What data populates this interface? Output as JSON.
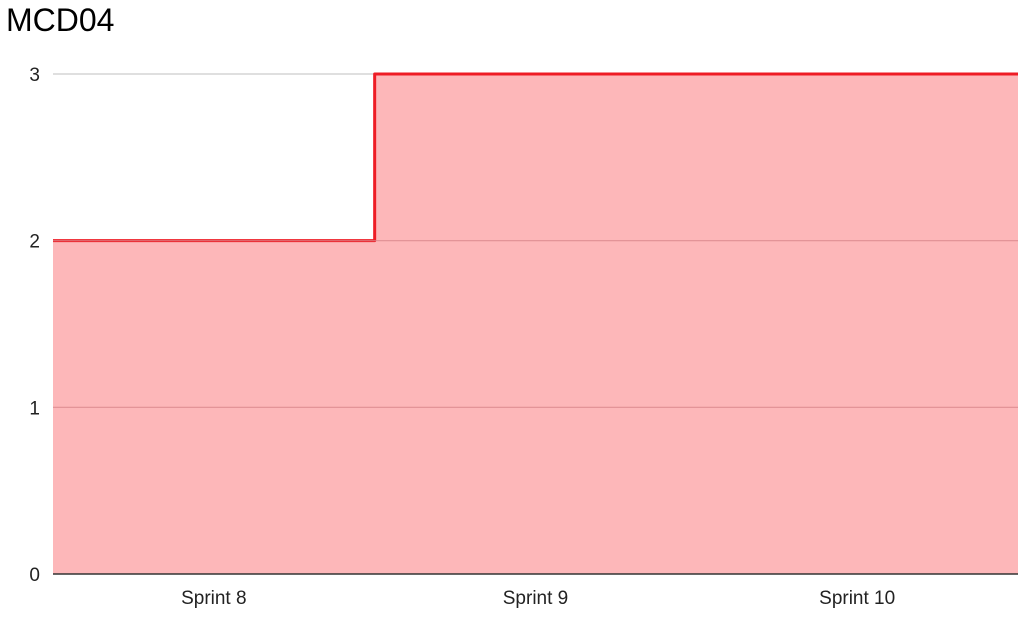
{
  "chart_data": {
    "type": "area",
    "title": "MCD04",
    "categories": [
      "Sprint 8",
      "Sprint 9",
      "Sprint 10"
    ],
    "series": [
      {
        "values": [
          2,
          3,
          3
        ]
      }
    ],
    "step": true,
    "ylim": [
      0,
      3
    ],
    "yticks": [
      "0",
      "1",
      "2",
      "3"
    ],
    "grid": true,
    "colors": {
      "line": "#ee1c25",
      "fill": "#fdb3b5",
      "grid": "#cccccc",
      "axis": "#333333"
    }
  }
}
